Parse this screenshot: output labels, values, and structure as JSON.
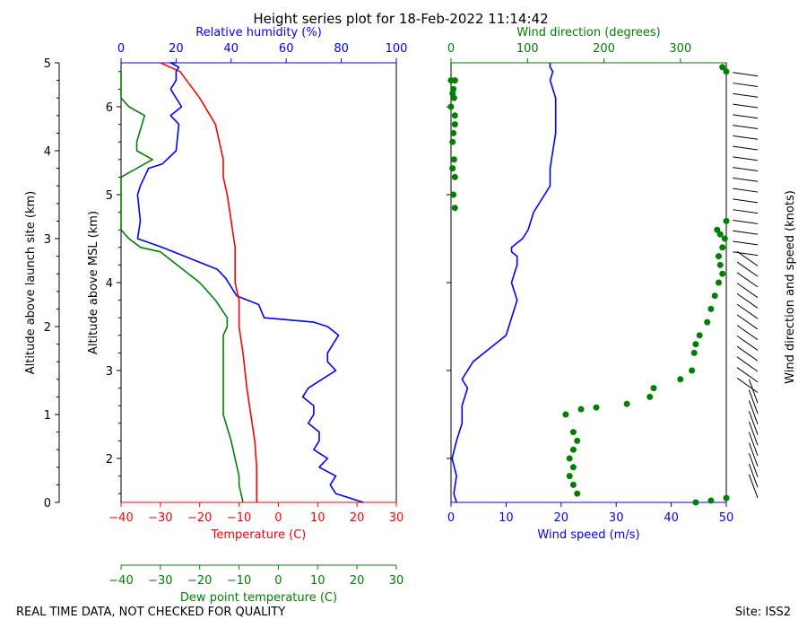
{
  "title": "Height series plot for 18-Feb-2022 11:14:42",
  "footer_left": "REAL TIME DATA, NOT CHECKED FOR QUALITY",
  "footer_right": "Site: ISS2",
  "colors": {
    "temperature": "#ff0000",
    "dewpoint": "#008000",
    "rh": "#0000ff",
    "wind_speed": "#0000ff",
    "wind_dir": "#008000",
    "axis": "#000000"
  },
  "chart_data": [
    {
      "type": "line",
      "name": "thermo-panel",
      "xlabel_bottom": "Temperature (C)",
      "xlabel_dew": "Dew point temperature (C)",
      "xlabel_top": "Relative humidity (%)",
      "ylabel_left": "Altitude above launch site (km)",
      "ylabel_inner": "Altitude above MSL (km)",
      "xlim_temp": [
        -40,
        30
      ],
      "xticks_temp": [
        -40,
        -30,
        -20,
        -10,
        0,
        10,
        20,
        30
      ],
      "xlim_rh": [
        0,
        100
      ],
      "xticks_rh": [
        0,
        20,
        40,
        60,
        80,
        100
      ],
      "ylim_agl": [
        0,
        5
      ],
      "yticks_agl": [
        0,
        1,
        2,
        3,
        4,
        5
      ],
      "ylim_msl": [
        1.5,
        6.5
      ],
      "yticks_msl": [
        2,
        3,
        4,
        5,
        6
      ],
      "series": [
        {
          "name": "Temperature",
          "x": [
            -5.5,
            -5.5,
            -6,
            -7,
            -8,
            -9,
            -10,
            -10,
            -11,
            -11,
            -11,
            -12,
            -13,
            -14,
            -14,
            -15,
            -16,
            -20,
            -25,
            -30
          ],
          "y": [
            1.5,
            1.9,
            2.2,
            2.5,
            2.8,
            3.2,
            3.5,
            3.8,
            4.0,
            4.2,
            4.4,
            4.7,
            5.0,
            5.2,
            5.4,
            5.6,
            5.8,
            6.1,
            6.4,
            6.5
          ]
        },
        {
          "name": "Dew point",
          "x": [
            -9,
            -10,
            -10,
            -11,
            -12,
            -14,
            -14,
            -14,
            -14,
            -13,
            -13,
            -16,
            -20,
            -30,
            -35,
            -38,
            -40,
            -40,
            -40,
            -32,
            -36,
            -36,
            -34,
            -38,
            -40,
            -40
          ],
          "y": [
            1.5,
            1.7,
            1.8,
            2.0,
            2.2,
            2.5,
            2.8,
            3.1,
            3.4,
            3.5,
            3.6,
            3.8,
            4.0,
            4.35,
            4.4,
            4.5,
            4.6,
            4.85,
            5.2,
            5.4,
            5.5,
            5.6,
            5.9,
            6.0,
            6.1,
            6.4
          ]
        },
        {
          "name": "Relative humidity",
          "x": [
            88,
            78,
            76,
            78,
            72,
            75,
            70,
            72,
            72,
            68,
            70,
            70,
            66,
            68,
            73,
            78,
            75,
            75,
            79,
            75,
            70,
            52,
            50,
            42,
            40,
            38,
            35,
            15,
            6,
            7,
            6,
            7,
            10,
            15,
            20,
            21,
            18,
            22,
            18,
            20,
            20,
            21,
            18,
            20
          ],
          "y": [
            1.5,
            1.6,
            1.7,
            1.8,
            1.9,
            2.0,
            2.1,
            2.2,
            2.3,
            2.4,
            2.5,
            2.6,
            2.7,
            2.8,
            2.9,
            3.0,
            3.1,
            3.2,
            3.4,
            3.5,
            3.55,
            3.6,
            3.75,
            3.85,
            3.95,
            4.05,
            4.15,
            4.4,
            4.5,
            4.7,
            5.0,
            5.1,
            5.3,
            5.35,
            5.5,
            5.8,
            5.9,
            6.0,
            6.2,
            6.3,
            6.4,
            6.45,
            6.5,
            6.5
          ]
        }
      ]
    },
    {
      "type": "scatter",
      "name": "wind-panel",
      "xlabel_bottom": "Wind speed (m/s)",
      "xlabel_top": "Wind direction (degrees)",
      "ylabel_right": "Wind direction and speed (knots)",
      "xlim_speed": [
        0,
        50
      ],
      "xticks_speed": [
        0,
        10,
        20,
        30,
        40,
        50
      ],
      "xlim_dir": [
        0,
        360
      ],
      "xticks_dir": [
        0,
        100,
        200,
        300
      ],
      "series": [
        {
          "name": "Wind speed",
          "x": [
            1,
            0.5,
            1,
            0.2,
            1,
            2,
            2,
            3,
            2,
            3,
            4,
            6,
            8,
            10,
            11,
            12,
            11,
            12,
            12,
            11,
            11,
            13,
            14,
            15,
            17,
            18,
            18,
            18.5,
            19,
            19,
            19,
            19,
            18.5,
            18,
            18.5,
            18,
            18
          ],
          "y": [
            1.5,
            1.6,
            1.8,
            2.0,
            2.2,
            2.4,
            2.6,
            2.8,
            2.9,
            3.0,
            3.1,
            3.2,
            3.3,
            3.4,
            3.6,
            3.8,
            4.0,
            4.2,
            4.3,
            4.35,
            4.4,
            4.5,
            4.6,
            4.8,
            5.0,
            5.1,
            5.3,
            5.5,
            5.7,
            5.9,
            6.0,
            6.1,
            6.2,
            6.3,
            6.4,
            6.45,
            6.5
          ]
        },
        {
          "name": "Wind direction",
          "x": [
            320,
            340,
            360,
            165,
            160,
            155,
            160,
            155,
            160,
            165,
            160,
            150,
            170,
            190,
            230,
            260,
            265,
            300,
            315,
            318,
            320,
            325,
            335,
            340,
            345,
            350,
            355,
            352,
            350,
            355,
            358,
            352,
            348,
            360,
            5,
            3,
            5,
            4,
            2,
            5,
            0,
            2,
            5,
            3,
            4,
            5,
            3,
            2,
            0,
            360,
            355
          ],
          "y": [
            1.5,
            1.52,
            1.55,
            1.6,
            1.7,
            1.8,
            1.9,
            2.0,
            2.1,
            2.2,
            2.3,
            2.5,
            2.56,
            2.58,
            2.62,
            2.7,
            2.8,
            2.9,
            3.0,
            3.2,
            3.3,
            3.4,
            3.55,
            3.7,
            3.85,
            4.0,
            4.1,
            4.2,
            4.3,
            4.4,
            4.5,
            4.55,
            4.6,
            4.7,
            4.85,
            5.0,
            5.2,
            5.4,
            5.6,
            5.8,
            6.0,
            6.15,
            6.3,
            6.2,
            6.1,
            5.9,
            5.7,
            5.3,
            6.3,
            6.4,
            6.45
          ]
        }
      ]
    }
  ]
}
